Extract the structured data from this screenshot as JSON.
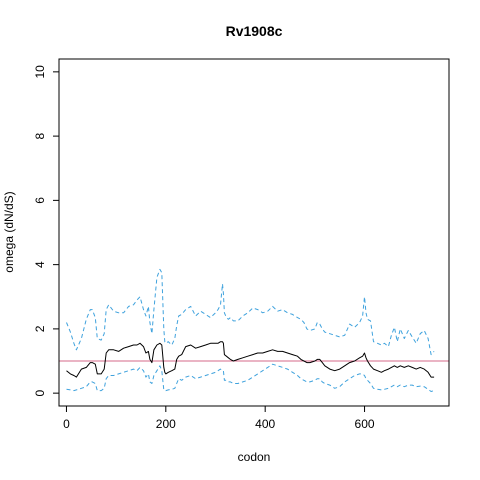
{
  "chart_data": {
    "type": "line",
    "title": "Rv1908c",
    "xlabel": "codon",
    "ylabel": "omega (dN/dS)",
    "xlim": [
      -15,
      770
    ],
    "ylim": [
      -0.4,
      10.4
    ],
    "xticks": [
      0,
      200,
      400,
      600
    ],
    "yticks": [
      0,
      2,
      4,
      6,
      8,
      10
    ],
    "grid": false,
    "reference_line": {
      "y": 1,
      "color": "#d66a8a"
    },
    "colors": {
      "estimate": "#000000",
      "ci": "#3fa2dd"
    },
    "series": [
      {
        "role": "upper",
        "style": "dashed",
        "x": [
          0,
          8,
          15,
          20,
          30,
          40,
          48,
          52,
          58,
          62,
          70,
          76,
          80,
          85,
          95,
          105,
          115,
          125,
          135,
          142,
          148,
          155,
          160,
          165,
          168,
          172,
          176,
          182,
          188,
          192,
          196,
          198,
          200,
          205,
          212,
          218,
          222,
          226,
          232,
          240,
          250,
          260,
          270,
          280,
          290,
          300,
          305,
          310,
          314,
          316,
          318,
          322,
          326,
          330,
          336,
          345,
          355,
          365,
          375,
          385,
          395,
          405,
          415,
          425,
          435,
          445,
          455,
          465,
          472,
          478,
          484,
          490,
          500,
          505,
          510,
          515,
          520,
          530,
          540,
          550,
          560,
          570,
          580,
          590,
          596,
          600,
          603,
          606,
          612,
          618,
          626,
          634,
          640,
          648,
          654,
          660,
          666,
          672,
          680,
          688,
          696,
          704,
          712,
          720,
          728,
          734,
          740
        ],
        "values": [
          2.2,
          1.9,
          1.55,
          1.35,
          1.7,
          2.3,
          2.6,
          2.6,
          2.35,
          1.7,
          1.65,
          1.85,
          2.6,
          2.75,
          2.55,
          2.5,
          2.5,
          2.7,
          2.75,
          2.9,
          3.0,
          2.6,
          2.4,
          2.7,
          2.2,
          1.85,
          2.6,
          3.6,
          3.85,
          3.75,
          2.0,
          1.6,
          1.55,
          1.6,
          1.5,
          1.7,
          2.1,
          2.4,
          2.45,
          2.6,
          2.7,
          2.4,
          2.55,
          2.45,
          2.35,
          2.5,
          2.6,
          2.75,
          3.4,
          3.1,
          2.5,
          2.35,
          2.3,
          2.35,
          2.25,
          2.25,
          2.4,
          2.5,
          2.65,
          2.6,
          2.5,
          2.55,
          2.7,
          2.55,
          2.6,
          2.5,
          2.45,
          2.35,
          2.3,
          2.2,
          2.0,
          1.95,
          2.0,
          2.2,
          2.15,
          2.0,
          1.9,
          1.85,
          1.8,
          1.75,
          1.8,
          2.15,
          2.05,
          2.2,
          2.4,
          3.0,
          2.5,
          2.3,
          2.25,
          1.6,
          1.55,
          1.5,
          1.55,
          1.45,
          1.8,
          2.05,
          1.6,
          2.0,
          1.7,
          1.95,
          1.75,
          1.55,
          1.85,
          1.95,
          1.7,
          1.2,
          1.3
        ]
      },
      {
        "role": "estimate",
        "style": "solid",
        "x": [
          0,
          8,
          15,
          20,
          30,
          40,
          48,
          52,
          58,
          62,
          70,
          76,
          80,
          85,
          95,
          105,
          115,
          125,
          135,
          142,
          148,
          155,
          160,
          165,
          168,
          172,
          176,
          182,
          188,
          192,
          196,
          198,
          200,
          205,
          212,
          218,
          222,
          226,
          232,
          240,
          250,
          260,
          270,
          280,
          290,
          300,
          305,
          310,
          314,
          316,
          318,
          322,
          326,
          330,
          336,
          345,
          355,
          365,
          375,
          385,
          395,
          405,
          415,
          425,
          435,
          445,
          455,
          465,
          472,
          478,
          484,
          490,
          500,
          505,
          510,
          515,
          520,
          530,
          540,
          550,
          560,
          570,
          580,
          590,
          596,
          600,
          603,
          606,
          612,
          618,
          626,
          634,
          640,
          648,
          654,
          660,
          666,
          672,
          680,
          688,
          696,
          704,
          712,
          720,
          728,
          734,
          740
        ],
        "values": [
          0.7,
          0.6,
          0.55,
          0.5,
          0.75,
          0.8,
          0.95,
          0.95,
          0.9,
          0.6,
          0.6,
          0.75,
          1.25,
          1.35,
          1.35,
          1.3,
          1.4,
          1.45,
          1.5,
          1.5,
          1.55,
          1.45,
          1.25,
          1.3,
          1.05,
          0.95,
          1.35,
          1.5,
          1.55,
          1.5,
          0.8,
          0.65,
          0.6,
          0.65,
          0.7,
          0.75,
          1.05,
          1.15,
          1.2,
          1.45,
          1.5,
          1.4,
          1.45,
          1.5,
          1.55,
          1.55,
          1.55,
          1.6,
          1.6,
          1.55,
          1.2,
          1.15,
          1.1,
          1.05,
          1.0,
          1.05,
          1.1,
          1.15,
          1.2,
          1.25,
          1.25,
          1.3,
          1.35,
          1.3,
          1.3,
          1.25,
          1.2,
          1.15,
          1.05,
          1.0,
          0.95,
          0.95,
          1.0,
          1.05,
          1.05,
          0.95,
          0.85,
          0.75,
          0.7,
          0.75,
          0.85,
          0.95,
          1.0,
          1.1,
          1.15,
          1.25,
          1.1,
          1.0,
          0.85,
          0.75,
          0.7,
          0.65,
          0.7,
          0.75,
          0.8,
          0.85,
          0.8,
          0.85,
          0.8,
          0.85,
          0.8,
          0.75,
          0.8,
          0.75,
          0.65,
          0.5,
          0.5
        ]
      },
      {
        "role": "lower",
        "style": "dashed",
        "x": [
          0,
          8,
          15,
          20,
          30,
          40,
          48,
          52,
          58,
          62,
          70,
          76,
          80,
          85,
          95,
          105,
          115,
          125,
          135,
          142,
          148,
          155,
          160,
          165,
          168,
          172,
          176,
          182,
          188,
          192,
          196,
          198,
          200,
          205,
          212,
          218,
          222,
          226,
          232,
          240,
          250,
          260,
          270,
          280,
          290,
          300,
          305,
          310,
          314,
          316,
          318,
          322,
          326,
          330,
          336,
          345,
          355,
          365,
          375,
          385,
          395,
          405,
          415,
          425,
          435,
          445,
          455,
          465,
          472,
          478,
          484,
          490,
          500,
          505,
          510,
          515,
          520,
          530,
          540,
          550,
          560,
          570,
          580,
          590,
          596,
          600,
          603,
          606,
          612,
          618,
          626,
          634,
          640,
          648,
          654,
          660,
          666,
          672,
          680,
          688,
          696,
          704,
          712,
          720,
          728,
          734,
          740
        ],
        "values": [
          0.12,
          0.1,
          0.08,
          0.1,
          0.15,
          0.2,
          0.35,
          0.35,
          0.3,
          0.08,
          0.08,
          0.15,
          0.45,
          0.55,
          0.55,
          0.6,
          0.65,
          0.7,
          0.75,
          0.7,
          0.8,
          0.7,
          0.5,
          0.6,
          0.35,
          0.3,
          0.55,
          0.7,
          0.85,
          0.7,
          0.1,
          0.1,
          0.08,
          0.1,
          0.12,
          0.15,
          0.3,
          0.45,
          0.4,
          0.5,
          0.55,
          0.45,
          0.5,
          0.55,
          0.6,
          0.65,
          0.7,
          0.75,
          0.7,
          0.7,
          0.4,
          0.4,
          0.35,
          0.35,
          0.3,
          0.3,
          0.35,
          0.4,
          0.5,
          0.6,
          0.7,
          0.8,
          0.9,
          0.85,
          0.8,
          0.75,
          0.65,
          0.55,
          0.45,
          0.4,
          0.35,
          0.35,
          0.4,
          0.45,
          0.45,
          0.35,
          0.3,
          0.25,
          0.15,
          0.2,
          0.35,
          0.45,
          0.55,
          0.6,
          0.6,
          0.55,
          0.45,
          0.4,
          0.3,
          0.15,
          0.12,
          0.1,
          0.12,
          0.15,
          0.2,
          0.25,
          0.2,
          0.25,
          0.2,
          0.25,
          0.25,
          0.2,
          0.22,
          0.2,
          0.12,
          0.05,
          0.08
        ]
      }
    ]
  }
}
